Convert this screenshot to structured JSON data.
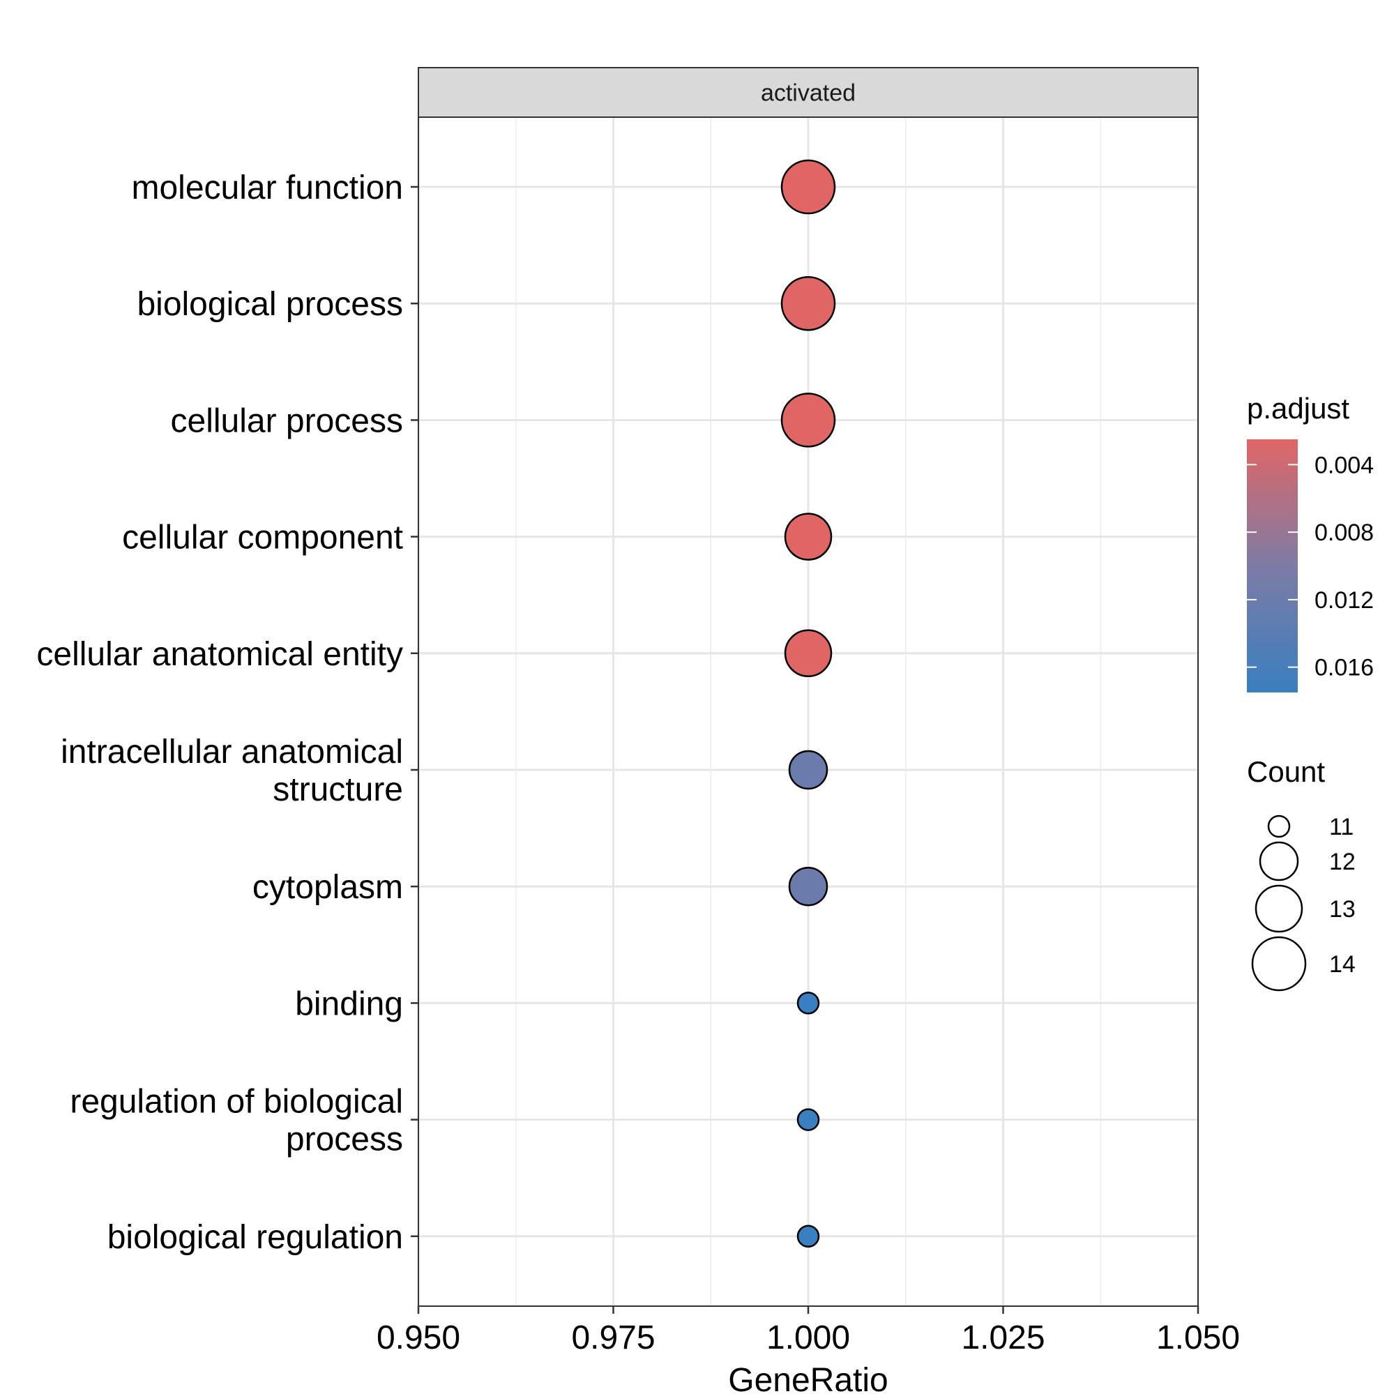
{
  "chart_data": {
    "type": "scatter",
    "facet": "activated",
    "xlabel": "GeneRatio",
    "ylabel": "",
    "xlim": [
      0.95,
      1.05
    ],
    "xticks": [
      0.95,
      0.975,
      1.0,
      1.025,
      1.05
    ],
    "xtick_labels": [
      "0.950",
      "0.975",
      "1.000",
      "1.025",
      "1.050"
    ],
    "grid": true,
    "categories": [
      [
        "molecular function"
      ],
      [
        "biological process"
      ],
      [
        "cellular process"
      ],
      [
        "cellular component"
      ],
      [
        "cellular anatomical entity"
      ],
      [
        "intracellular anatomical",
        "structure"
      ],
      [
        "cytoplasm"
      ],
      [
        "binding"
      ],
      [
        "regulation of biological",
        "process"
      ],
      [
        "biological regulation"
      ]
    ],
    "points": [
      {
        "gene_ratio": 1.0,
        "count": 14,
        "p_adjust": 0.0025
      },
      {
        "gene_ratio": 1.0,
        "count": 14,
        "p_adjust": 0.0025
      },
      {
        "gene_ratio": 1.0,
        "count": 14,
        "p_adjust": 0.0025
      },
      {
        "gene_ratio": 1.0,
        "count": 13,
        "p_adjust": 0.0025
      },
      {
        "gene_ratio": 1.0,
        "count": 13,
        "p_adjust": 0.0025
      },
      {
        "gene_ratio": 1.0,
        "count": 12,
        "p_adjust": 0.012
      },
      {
        "gene_ratio": 1.0,
        "count": 12,
        "p_adjust": 0.012
      },
      {
        "gene_ratio": 1.0,
        "count": 11,
        "p_adjust": 0.0175
      },
      {
        "gene_ratio": 1.0,
        "count": 11,
        "p_adjust": 0.0175
      },
      {
        "gene_ratio": 1.0,
        "count": 11,
        "p_adjust": 0.0175
      }
    ],
    "color_legend": {
      "title": "p.adjust",
      "range": [
        0.0025,
        0.0175
      ],
      "ticks": [
        0.004,
        0.008,
        0.012,
        0.016
      ],
      "tick_labels": [
        "0.004",
        "0.008",
        "0.012",
        "0.016"
      ],
      "low_color": "#E06666",
      "high_color": "#3A7FBF",
      "position": "right"
    },
    "size_legend": {
      "title": "Count",
      "values": [
        11,
        12,
        13,
        14
      ],
      "labels": [
        "11",
        "12",
        "13",
        "14"
      ],
      "position": "right"
    }
  }
}
